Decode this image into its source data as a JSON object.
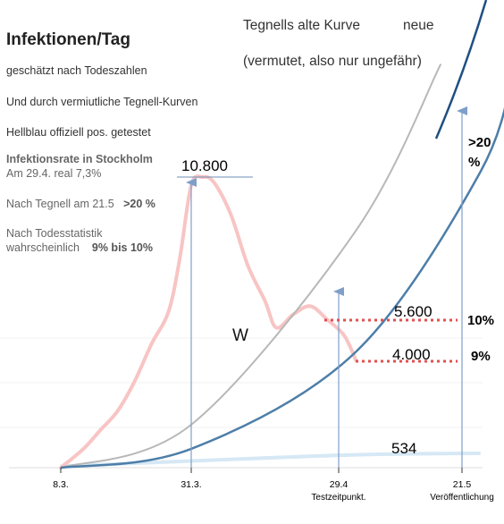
{
  "header": {
    "title": "Infektionen/Tag",
    "line1": "geschätzt nach Todeszahlen",
    "line2": "Und durch vermiutliche Tegnell-Kurven",
    "line3": "Hellblau offiziell pos. getestet"
  },
  "stats": {
    "rate_heading": "Infektionsrate in Stockholm",
    "rate_real": "Am 29.4. real 7,3%",
    "tegnell_label": "Nach Tegnell am 21.5",
    "tegnell_value": ">20 %",
    "death_label_1": "Nach Todesstatistik",
    "death_label_2": "wahrscheinlich",
    "death_value": "9% bis 10%"
  },
  "legend": {
    "old_curve": "Tegnells alte Kurve",
    "new_curve": "neue",
    "note": "(vermutet, also nur ungefähr)"
  },
  "annotations": {
    "peak": "10.800",
    "mid": "5.600",
    "low": "4.000",
    "tested": "534",
    "w": "W",
    "pct_top": ">20",
    "pct_top_unit": "%",
    "pct_10": "10%",
    "pct_9": "9%"
  },
  "colors": {
    "estimated": "#f8c4c4",
    "old_curve": "#b8b8b8",
    "new_curve": "#4d7ea8",
    "tested": "#cfe3f2",
    "dotted": "#e05050",
    "arrow": "#7f9fc9",
    "pct_light": "#c070c0",
    "pct_dark": "#7a2a80"
  },
  "chart_data": {
    "type": "line",
    "x_ticks": [
      "8.3.",
      "31.3.",
      "29.4",
      "21.5"
    ],
    "x_tick_sublabels": [
      "",
      "",
      "Testzeitpunkt.",
      "Veröffentlichung"
    ],
    "series": [
      {
        "key": "estimated",
        "values": [
          {
            "x": "8.3.",
            "y": 0
          },
          {
            "x": "12.3.",
            "y": 700
          },
          {
            "x": "15.3.",
            "y": 1400
          },
          {
            "x": "18.3.",
            "y": 2100
          },
          {
            "x": "21.3.",
            "y": 3200
          },
          {
            "x": "24.3.",
            "y": 4600
          },
          {
            "x": "27.3.",
            "y": 5800
          },
          {
            "x": "29.3.",
            "y": 7800
          },
          {
            "x": "31.3.",
            "y": 10500
          },
          {
            "x": "2.4.",
            "y": 10800
          },
          {
            "x": "4.4.",
            "y": 10600
          },
          {
            "x": "7.4.",
            "y": 9400
          },
          {
            "x": "10.4.",
            "y": 7500
          },
          {
            "x": "13.4.",
            "y": 6200
          },
          {
            "x": "15.4.",
            "y": 5200
          },
          {
            "x": "18.4.",
            "y": 5700
          },
          {
            "x": "21.4.",
            "y": 6000
          },
          {
            "x": "24.4.",
            "y": 5500
          },
          {
            "x": "27.4.",
            "y": 4900
          },
          {
            "x": "29.4.",
            "y": 4000
          }
        ]
      },
      {
        "key": "old_curve",
        "name": "Tegnells alte Kurve",
        "values": [
          {
            "x": "8.3.",
            "y": 0
          },
          {
            "x": "31.3.",
            "y": 1600
          },
          {
            "x": "29.4",
            "y": 8800
          },
          {
            "x": "14.5.",
            "y": 15000
          }
        ]
      },
      {
        "key": "new_curve",
        "name": "neue",
        "values": [
          {
            "x": "8.3.",
            "y": 0
          },
          {
            "x": "31.3.",
            "y": 700
          },
          {
            "x": "29.4",
            "y": 4300
          },
          {
            "x": "21.5",
            "y": 11000
          },
          {
            "x": "27.5.",
            "y": 15000
          }
        ]
      },
      {
        "key": "tested",
        "values": [
          {
            "x": "8.3.",
            "y": 50
          },
          {
            "x": "31.3.",
            "y": 250
          },
          {
            "x": "29.4",
            "y": 480
          },
          {
            "x": "21.5",
            "y": 534
          }
        ]
      }
    ],
    "reference_lines": [
      {
        "label": "10.800",
        "y": 10800
      },
      {
        "label": "5.600",
        "y": 5600
      },
      {
        "label": "4.000",
        "y": 4000
      },
      {
        "label": "534",
        "y": 534
      }
    ]
  }
}
